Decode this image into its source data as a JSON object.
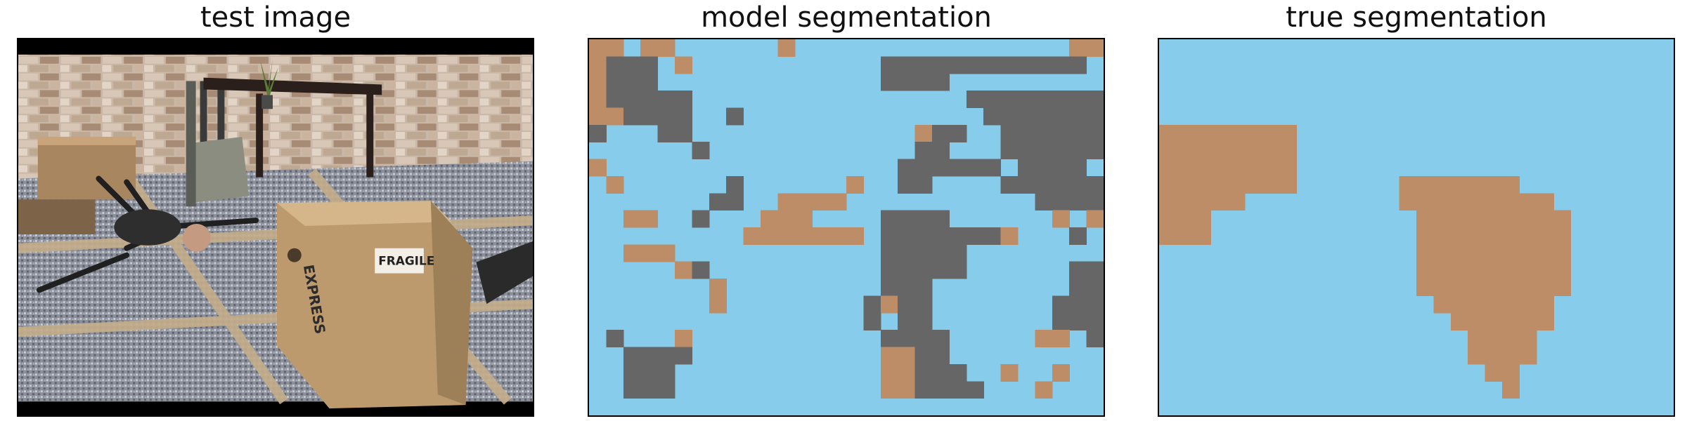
{
  "panels": [
    {
      "title": "test image"
    },
    {
      "title": "model segmentation"
    },
    {
      "title": "true segmentation"
    }
  ],
  "scene": {
    "box_stamp": "EXPRESS",
    "box_label": "FRAGILE"
  },
  "segmentation_colors": {
    "sky": "#87cdeb",
    "tan": "#bc8d66",
    "gray": "#666666"
  },
  "segmentation": {
    "cols": 30,
    "rows": 22,
    "legend": "0 = sky, 1 = tan, 2 = gray",
    "model": [
      "110110000001000000000000000011",
      "122201000000000002222222222220",
      "122200000000000002222000000000",
      "122222000000000000000022222222",
      "112222002000000000000002222222",
      "200022000000000000012200222222",
      "000000200000000000022000222222",
      "100000000000000000222222022220",
      "010000002000000100220000222222",
      "000000022001111000000000002222",
      "001100200011100002222000000101",
      "000000000111111102222222100020",
      "001110000000000002222200000000",
      "000001200000000002222200000022",
      "000000010000000002220000000022",
      "000000010000000021220000000222",
      "000000000000000020220000000222",
      "020001000000000002222000001102",
      "002222000000000001122000000000",
      "002220000000000001122200100100",
      "002220000000000001122220001000",
      "000000000000000000000000000000"
    ],
    "truth": [
      "000000000000000000000000000000",
      "000000000000000000000000000000",
      "000000000000000000000000000000",
      "000000000000000000000000000000",
      "000000000000000000000000000000",
      "111111110000000000000000000000",
      "111111110000000000000000000000",
      "111111110000000000000000000000",
      "111111110000001111111000000000",
      "111110000000001111111110000000",
      "111000000000000111111111000000",
      "111000000000000111111111000000",
      "000000000000000111111111000000",
      "000000000000000111111111000000",
      "000000000000000111111111000000",
      "000000000000000011111110000000",
      "000000000000000001111110000000",
      "000000000000000000111100000000",
      "000000000000000000111100000000",
      "000000000000000000011000000000",
      "000000000000000000001000000000",
      "000000000000000000000000000000"
    ]
  }
}
